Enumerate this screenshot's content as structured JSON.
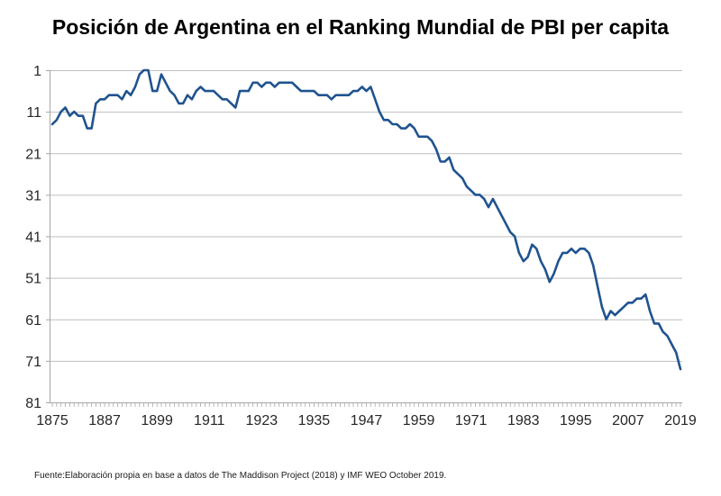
{
  "title": "Posición de Argentina en el Ranking Mundial de PBI per capita",
  "footer": "Fuente:Elaboración propia en base a datos de The Maddison Project (2018) y IMF WEO October 2019.",
  "colors": {
    "line": "#20538F",
    "gridline": "#BFBFBF",
    "axis": "#A6A6A6",
    "tick_label": "#262626",
    "background": "#FFFFFF"
  },
  "chart_data": {
    "type": "line",
    "title": "Posición de Argentina en el Ranking Mundial de PBI per capita",
    "xlabel": "",
    "ylabel": "",
    "legend": "none",
    "grid": "horizontal",
    "y_axis_inverted": true,
    "xlim": [
      1875,
      2019
    ],
    "ylim": [
      1,
      81
    ],
    "x_ticks": [
      1875,
      1887,
      1899,
      1911,
      1923,
      1935,
      1947,
      1959,
      1971,
      1983,
      1995,
      2007,
      2019
    ],
    "x_minor_tick_every": 1,
    "y_ticks": [
      1,
      11,
      21,
      31,
      41,
      51,
      61,
      71,
      81
    ],
    "series": [
      {
        "name": "Posición de Argentina en el ranking mundial de PBI per capita",
        "x": [
          1875,
          1876,
          1877,
          1878,
          1879,
          1880,
          1881,
          1882,
          1883,
          1884,
          1885,
          1886,
          1887,
          1888,
          1889,
          1890,
          1891,
          1892,
          1893,
          1894,
          1895,
          1896,
          1897,
          1898,
          1899,
          1900,
          1901,
          1902,
          1903,
          1904,
          1905,
          1906,
          1907,
          1908,
          1909,
          1910,
          1911,
          1912,
          1913,
          1914,
          1915,
          1916,
          1917,
          1918,
          1919,
          1920,
          1921,
          1922,
          1923,
          1924,
          1925,
          1926,
          1927,
          1928,
          1929,
          1930,
          1931,
          1932,
          1933,
          1934,
          1935,
          1936,
          1937,
          1938,
          1939,
          1940,
          1941,
          1942,
          1943,
          1944,
          1945,
          1946,
          1947,
          1948,
          1949,
          1950,
          1951,
          1952,
          1953,
          1954,
          1955,
          1956,
          1957,
          1958,
          1959,
          1960,
          1961,
          1962,
          1963,
          1964,
          1965,
          1966,
          1967,
          1968,
          1969,
          1970,
          1971,
          1972,
          1973,
          1974,
          1975,
          1976,
          1977,
          1978,
          1979,
          1980,
          1981,
          1982,
          1983,
          1984,
          1985,
          1986,
          1987,
          1988,
          1989,
          1990,
          1991,
          1992,
          1993,
          1994,
          1995,
          1996,
          1997,
          1998,
          1999,
          2000,
          2001,
          2002,
          2003,
          2004,
          2005,
          2006,
          2007,
          2008,
          2009,
          2010,
          2011,
          2012,
          2013,
          2014,
          2015,
          2016,
          2017,
          2018,
          2019
        ],
        "y": [
          14,
          13,
          11,
          10,
          12,
          11,
          12,
          12,
          15,
          15,
          9,
          8,
          8,
          7,
          7,
          7,
          8,
          6,
          7,
          5,
          2,
          1,
          1,
          6,
          6,
          2,
          4,
          6,
          7,
          9,
          9,
          7,
          8,
          6,
          5,
          6,
          6,
          6,
          7,
          8,
          8,
          9,
          10,
          6,
          6,
          6,
          4,
          4,
          5,
          4,
          4,
          5,
          4,
          4,
          4,
          4,
          5,
          6,
          6,
          6,
          6,
          7,
          7,
          7,
          8,
          7,
          7,
          7,
          7,
          6,
          6,
          5,
          6,
          5,
          8,
          11,
          13,
          13,
          14,
          14,
          15,
          15,
          14,
          15,
          17,
          17,
          17,
          18,
          20,
          23,
          23,
          22,
          25,
          26,
          27,
          29,
          30,
          31,
          31,
          32,
          34,
          32,
          34,
          36,
          38,
          40,
          41,
          45,
          47,
          46,
          43,
          44,
          47,
          49,
          52,
          50,
          47,
          45,
          45,
          44,
          45,
          44,
          44,
          45,
          48,
          53,
          58,
          61,
          59,
          60,
          59,
          58,
          57,
          57,
          56,
          56,
          55,
          59,
          62,
          62,
          64,
          65,
          67,
          69,
          73
        ]
      }
    ]
  }
}
